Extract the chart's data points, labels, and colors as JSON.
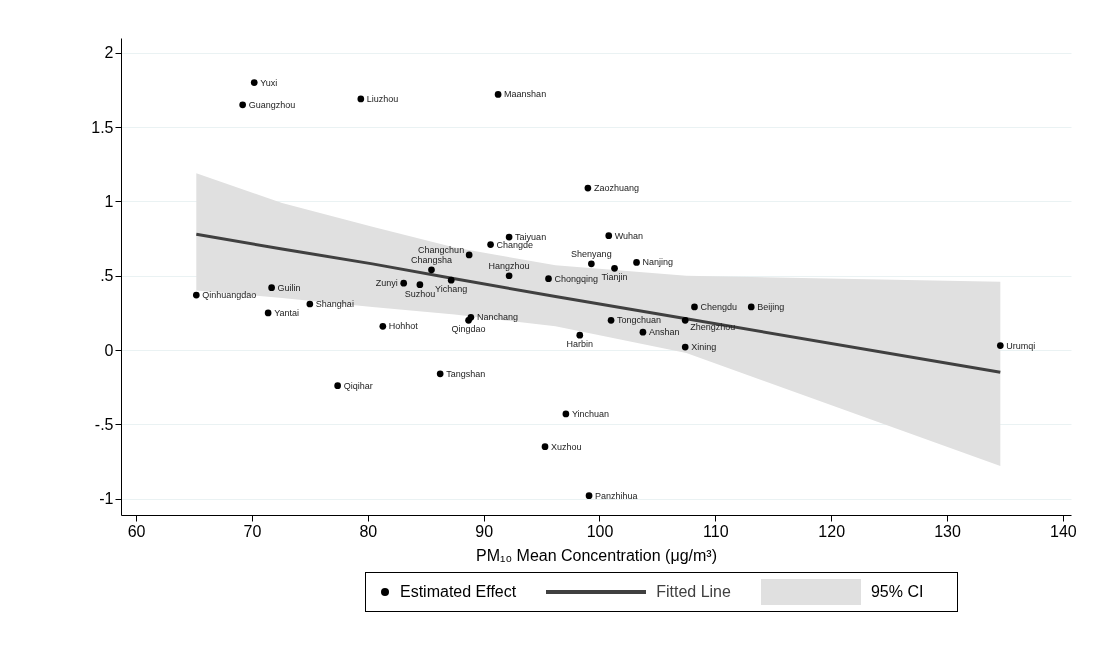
{
  "chart_data": {
    "type": "scatter",
    "xlabel": "PM₁₀ Mean Concentration (μg/m³)",
    "xlim": [
      58.7,
      140.7
    ],
    "xticks": [
      60,
      70,
      80,
      90,
      100,
      110,
      120,
      130,
      140
    ],
    "ylim": [
      -1.11,
      2.1
    ],
    "yticks": [
      -1,
      {
        "value": -0.5,
        "label": "-.5"
      },
      0,
      {
        "value": 0.5,
        "label": ".5"
      },
      1,
      1.5,
      2
    ],
    "grid": "y",
    "legend": "bottom",
    "series": [
      {
        "name": "Estimated Effect",
        "marker": "circle",
        "color": "#000000",
        "x": [
          70.2,
          69.2,
          79.4,
          91.25,
          99.0,
          92.2,
          90.6,
          88.75,
          100.8,
          99.3,
          101.3,
          103.2,
          92.2,
          95.6,
          85.5,
          87.2,
          83.1,
          84.5,
          65.2,
          71.7,
          75.0,
          71.4,
          81.3,
          88.9,
          88.7,
          98.3,
          101.0,
          103.75,
          107.4,
          107.4,
          108.2,
          113.1,
          134.6,
          86.25,
          77.4,
          97.1,
          95.3,
          99.1
        ],
        "values": [
          1.8,
          1.65,
          1.69,
          1.72,
          1.09,
          0.76,
          0.71,
          0.64,
          0.77,
          0.58,
          0.55,
          0.59,
          0.5,
          0.48,
          0.54,
          0.47,
          0.45,
          0.44,
          0.37,
          0.42,
          0.31,
          0.25,
          0.16,
          0.22,
          0.2,
          0.1,
          0.2,
          0.12,
          0.2,
          0.02,
          0.29,
          0.29,
          0.03,
          -0.16,
          -0.24,
          -0.43,
          -0.65,
          -0.98
        ]
      },
      {
        "name": "Fitted Line",
        "type": "line",
        "color": "#404040",
        "x": [
          65.2,
          72.6,
          80.4,
          87.5,
          96.2,
          107.5,
          134.6
        ],
        "values": [
          0.78,
          0.68,
          0.58,
          0.48,
          0.36,
          0.21,
          -0.15
        ],
        "lower": [
          0.4,
          0.35,
          0.29,
          0.24,
          0.16,
          -0.02,
          -0.78
        ],
        "upper": [
          1.19,
          0.99,
          0.83,
          0.69,
          0.57,
          0.5,
          0.46
        ]
      }
    ],
    "annotations": [
      "95% CI",
      {
        "text": "Yuxi",
        "x": 70.2,
        "y": 1.8
      },
      {
        "text": "Guangzhou",
        "x": 69.2,
        "y": 1.65
      },
      {
        "text": "Liuzhou",
        "x": 79.4,
        "y": 1.69
      },
      {
        "text": "Maanshan",
        "x": 91.25,
        "y": 1.72
      },
      {
        "text": "Zaozhuang",
        "x": 99.0,
        "y": 1.09
      },
      {
        "text": "Taiyuan",
        "x": 92.2,
        "y": 0.76
      },
      {
        "text": "Changde",
        "x": 90.6,
        "y": 0.71
      },
      {
        "text": "Changchun",
        "x": 88.75,
        "y": 0.64
      },
      {
        "text": "Wuhan",
        "x": 100.8,
        "y": 0.77
      },
      {
        "text": "Shenyang",
        "x": 99.3,
        "y": 0.58
      },
      {
        "text": "Tianjin",
        "x": 101.3,
        "y": 0.55
      },
      {
        "text": "Nanjing",
        "x": 103.2,
        "y": 0.59
      },
      {
        "text": "Hangzhou",
        "x": 92.2,
        "y": 0.5
      },
      {
        "text": "Chongqing",
        "x": 95.6,
        "y": 0.48
      },
      {
        "text": "Changsha",
        "x": 85.5,
        "y": 0.54
      },
      {
        "text": "Yichang",
        "x": 87.2,
        "y": 0.47
      },
      {
        "text": "Zunyi",
        "x": 83.1,
        "y": 0.45
      },
      {
        "text": "Suzhou",
        "x": 84.5,
        "y": 0.44
      },
      {
        "text": "Qinhuangdao",
        "x": 65.2,
        "y": 0.37
      },
      {
        "text": "Guilin",
        "x": 71.7,
        "y": 0.42
      },
      {
        "text": "Shanghai",
        "x": 75.0,
        "y": 0.31
      },
      {
        "text": "Yantai",
        "x": 71.4,
        "y": 0.25
      },
      {
        "text": "Hohhot",
        "x": 81.3,
        "y": 0.16
      },
      {
        "text": "Nanchang",
        "x": 88.9,
        "y": 0.22
      },
      {
        "text": "Qingdao",
        "x": 88.7,
        "y": 0.2
      },
      {
        "text": "Harbin",
        "x": 98.3,
        "y": 0.1
      },
      {
        "text": "Tongchuan",
        "x": 101.0,
        "y": 0.2
      },
      {
        "text": "Anshan",
        "x": 103.75,
        "y": 0.12
      },
      {
        "text": "Zhengzhou",
        "x": 107.4,
        "y": 0.2
      },
      {
        "text": "Xining",
        "x": 107.4,
        "y": 0.02
      },
      {
        "text": "Chengdu",
        "x": 108.2,
        "y": 0.29
      },
      {
        "text": "Beijing",
        "x": 113.1,
        "y": 0.29
      },
      {
        "text": "Urumqi",
        "x": 134.6,
        "y": 0.03
      },
      {
        "text": "Tangshan",
        "x": 86.25,
        "y": -0.16
      },
      {
        "text": "Qiqihar",
        "x": 77.4,
        "y": -0.24
      },
      {
        "text": "Yinchuan",
        "x": 97.1,
        "y": -0.43
      },
      {
        "text": "Xuzhou",
        "x": 95.3,
        "y": -0.65
      },
      {
        "text": "Panzhihua",
        "x": 99.1,
        "y": -0.98
      }
    ]
  }
}
